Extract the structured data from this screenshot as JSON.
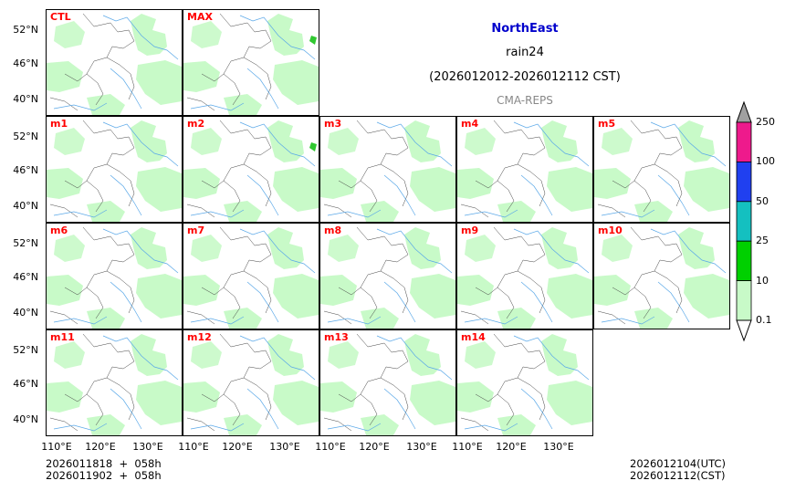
{
  "header": {
    "region": "NorthEast",
    "variable": "rain24",
    "period": "(2026012012-2026012112 CST)",
    "model": "CMA-REPS"
  },
  "colors": {
    "region_title": "#0000cc",
    "model_label": "#888888",
    "panel_label": "#ff0000",
    "rain_light": "#c8fac8",
    "river": "#5aa8e8",
    "border": "#444444"
  },
  "chart_data": {
    "type": "map-panels",
    "title": "NorthEast rain24 (2026012012-2026012112 CST)",
    "source": "CMA-REPS",
    "panels": [
      "CTL",
      "MAX",
      "m1",
      "m2",
      "m3",
      "m4",
      "m5",
      "m6",
      "m7",
      "m8",
      "m9",
      "m10",
      "m11",
      "m12",
      "m13",
      "m14"
    ],
    "y_ticks": [
      "52°N",
      "46°N",
      "40°N"
    ],
    "x_ticks": [
      "110°E",
      "120°E",
      "130°E"
    ],
    "colorbar": {
      "levels": [
        "250",
        "100",
        "50",
        "25",
        "10",
        "0.1"
      ],
      "colors": [
        "#a0a0a0",
        "#ee1a8c",
        "#2040f0",
        "#14c0c0",
        "#00d000",
        "#c8fac8",
        "#ffffff"
      ]
    }
  },
  "footer": {
    "init_line1": "2026011818  +  058h",
    "init_line2": "2026011902  +  058h",
    "valid_utc": "2026012104(UTC)",
    "valid_cst": "2026012112(CST)"
  }
}
